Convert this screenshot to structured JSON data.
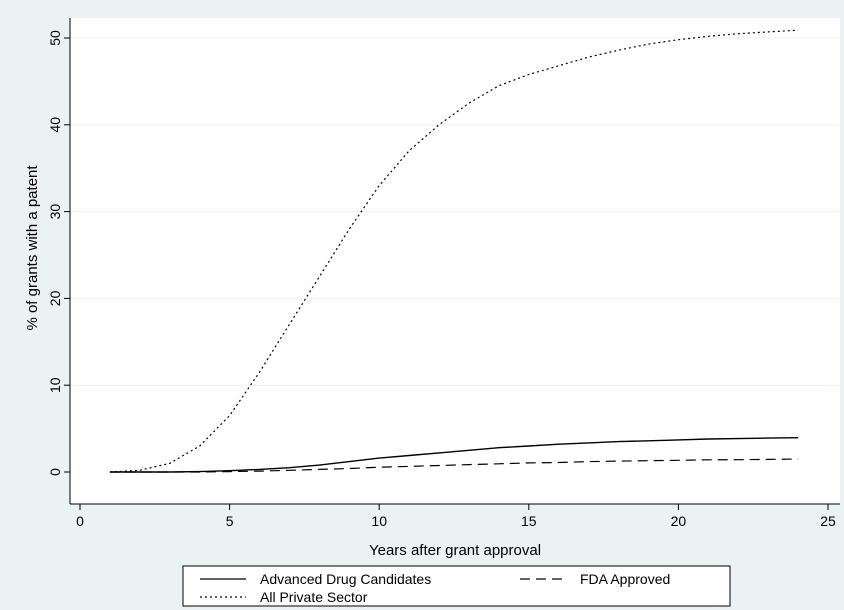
{
  "chart_data": {
    "type": "line",
    "title": "",
    "xlabel": "Years after grant approval",
    "ylabel": "% of grants with a patent",
    "xlim": [
      0,
      25
    ],
    "ylim": [
      0,
      50
    ],
    "xticks": [
      0,
      5,
      10,
      15,
      20,
      25
    ],
    "yticks": [
      0,
      10,
      20,
      30,
      40,
      50
    ],
    "grid": "horizontal",
    "legend_position": "bottom",
    "x": [
      1,
      2,
      3,
      4,
      5,
      6,
      7,
      8,
      9,
      10,
      11,
      12,
      13,
      14,
      15,
      16,
      17,
      18,
      19,
      20,
      21,
      22,
      23,
      24
    ],
    "series": [
      {
        "name": "Advanced Drug Candidates",
        "style": "solid",
        "values": [
          0,
          0,
          0,
          0.05,
          0.15,
          0.3,
          0.5,
          0.8,
          1.2,
          1.6,
          1.9,
          2.2,
          2.5,
          2.8,
          3.0,
          3.2,
          3.35,
          3.5,
          3.6,
          3.7,
          3.8,
          3.85,
          3.9,
          3.95
        ]
      },
      {
        "name": "FDA Approved",
        "style": "dashed",
        "values": [
          0,
          0,
          0,
          0,
          0.05,
          0.1,
          0.2,
          0.3,
          0.4,
          0.55,
          0.65,
          0.75,
          0.85,
          0.95,
          1.05,
          1.1,
          1.2,
          1.25,
          1.3,
          1.35,
          1.4,
          1.42,
          1.45,
          1.5
        ]
      },
      {
        "name": "All Private Sector",
        "style": "dotted",
        "values": [
          0,
          0.2,
          1.0,
          3.0,
          6.5,
          11.5,
          17.0,
          22.5,
          28.0,
          33.0,
          37.0,
          40.0,
          42.5,
          44.5,
          45.8,
          46.8,
          47.8,
          48.6,
          49.3,
          49.8,
          50.2,
          50.5,
          50.7,
          50.9
        ]
      }
    ]
  }
}
